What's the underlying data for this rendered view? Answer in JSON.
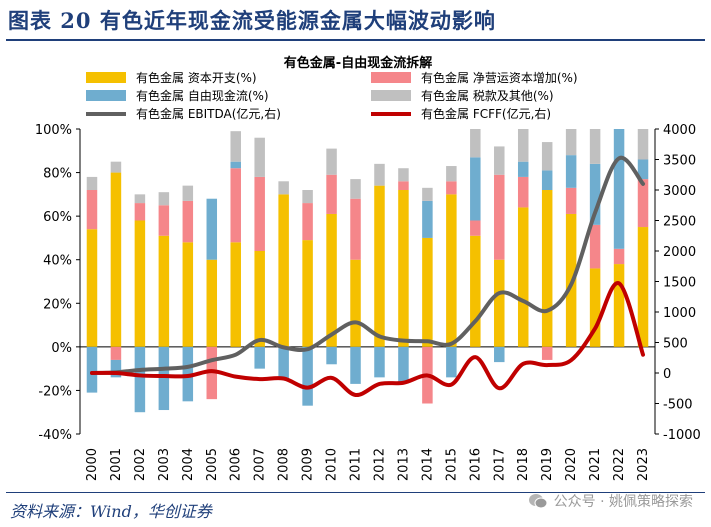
{
  "header": {
    "title": "图表 20  有色近年现金流受能源金属大幅波动影响"
  },
  "footer": {
    "source": "资料来源：Wind，华创证券",
    "watermark": "公众号 · 姚佩策略探索"
  },
  "colors": {
    "capex": "#f5c000",
    "wc": "#f5868a",
    "fcf": "#6fadcf",
    "tax": "#c0c0c0",
    "ebitda": "#606060",
    "fcff": "#c00000"
  },
  "chart_data": {
    "type": "bar",
    "title": "有色金属-自由现金流拆解",
    "categories": [
      "2000",
      "2001",
      "2002",
      "2003",
      "2004",
      "2005",
      "2006",
      "2007",
      "2008",
      "2009",
      "2010",
      "2011",
      "2012",
      "2013",
      "2014",
      "2015",
      "2016",
      "2017",
      "2018",
      "2019",
      "2020",
      "2021",
      "2022",
      "2023"
    ],
    "left_axis": {
      "min": -40,
      "max": 100,
      "ticks": [
        -40,
        -20,
        0,
        20,
        40,
        60,
        80,
        100
      ],
      "tick_labels": [
        "-40%",
        "-20%",
        "0%",
        "20%",
        "40%",
        "60%",
        "80%",
        "100%"
      ]
    },
    "right_axis": {
      "min": -1000,
      "max": 4000,
      "ticks": [
        -1000,
        -500,
        0,
        500,
        1000,
        1500,
        2000,
        2500,
        3000,
        3500,
        4000
      ],
      "tick_labels": [
        "-1000",
        "-500",
        "0",
        "500",
        "1000",
        "1500",
        "2000",
        "2500",
        "3000",
        "3500",
        "4000"
      ]
    },
    "legend": {
      "position": "top",
      "labels": {
        "capex": "有色金属 资本开支(%)",
        "wc": "有色金属 净营运资本增加(%)",
        "fcf": "有色金属 自由现金流(%)",
        "tax": "有色金属 税款及其他(%)",
        "ebitda": "有色金属 EBITDA(亿元,右)",
        "fcff": "有色金属 FCFF(亿元,右)"
      }
    },
    "series": [
      {
        "key": "capex",
        "name": "有色金属 资本开支(%)",
        "kind": "stack",
        "values": [
          54,
          80,
          58,
          51,
          48,
          40,
          48,
          44,
          70,
          49,
          61,
          40,
          74,
          72,
          50,
          70,
          51,
          40,
          64,
          72,
          61,
          36,
          38,
          55
        ]
      },
      {
        "key": "wc",
        "name": "有色金属 净营运资本增加(%)",
        "kind": "stack",
        "values": [
          18,
          -6,
          8,
          14,
          19,
          -24,
          34,
          34,
          0,
          17,
          18,
          28,
          0,
          4,
          -26,
          6,
          7,
          39,
          14,
          -6,
          12,
          20,
          7,
          22
        ]
      },
      {
        "key": "fcf",
        "name": "有色金属 自由现金流(%)",
        "kind": "stack",
        "values": [
          -21,
          -8,
          -30,
          -29,
          -25,
          28,
          3,
          -10,
          -15,
          -27,
          -8,
          -17,
          -14,
          -16,
          17,
          -14,
          29,
          -7,
          7,
          9,
          15,
          28,
          55,
          9
        ]
      },
      {
        "key": "tax",
        "name": "有色金属 税款及其他(%)",
        "kind": "stack",
        "values": [
          6,
          5,
          4,
          6,
          7,
          0,
          14,
          18,
          6,
          6,
          12,
          9,
          10,
          6,
          6,
          7,
          13,
          13,
          15,
          13,
          12,
          16,
          0,
          14
        ]
      },
      {
        "key": "ebitda",
        "name": "有色金属 EBITDA(亿元,右)",
        "kind": "line",
        "values": [
          0,
          10,
          50,
          70,
          100,
          210,
          300,
          540,
          420,
          390,
          630,
          830,
          600,
          530,
          520,
          480,
          850,
          1310,
          1180,
          1020,
          1450,
          2630,
          3520,
          3100
        ]
      },
      {
        "key": "fcff",
        "name": "有色金属 FCFF(亿元,右)",
        "kind": "line",
        "values": [
          0,
          0,
          -40,
          -50,
          -50,
          30,
          -60,
          -100,
          -90,
          -240,
          -80,
          -360,
          -180,
          -160,
          -40,
          -190,
          260,
          -250,
          150,
          130,
          210,
          730,
          1470,
          300
        ]
      }
    ]
  }
}
